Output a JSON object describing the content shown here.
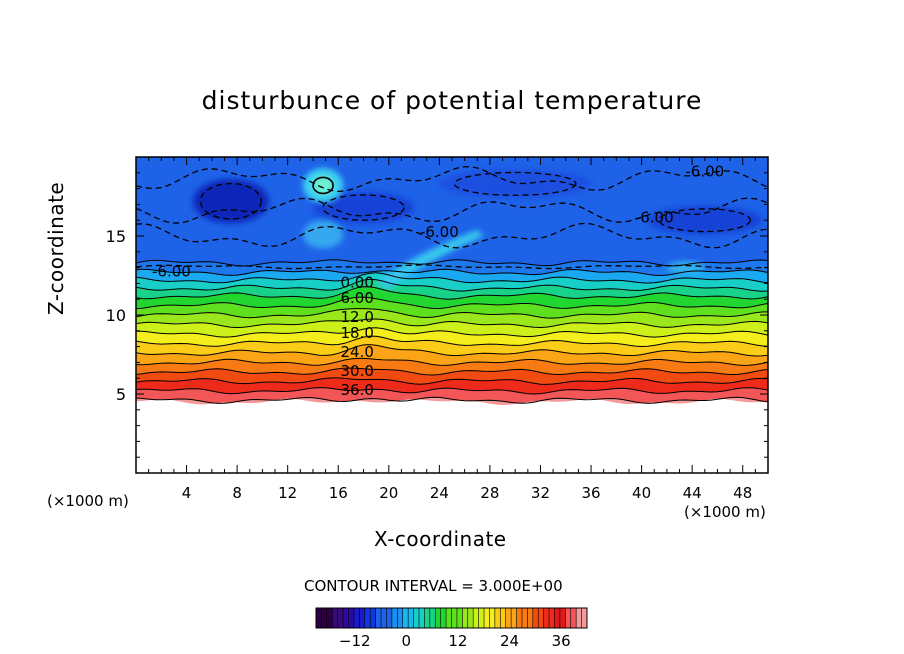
{
  "chart_data": {
    "type": "heatmap",
    "title": "disturbunce of potential temperature",
    "xlabel": "X-coordinate",
    "ylabel": "Z-coordinate",
    "x_unit": "(×1000 m)",
    "y_unit": "(×1000 m)",
    "xlim": [
      0,
      50
    ],
    "ylim": [
      0,
      20
    ],
    "x_ticks": [
      4,
      8,
      12,
      16,
      20,
      24,
      28,
      32,
      36,
      40,
      44,
      48
    ],
    "y_ticks": [
      5,
      10,
      15
    ],
    "contour_interval_text": "CONTOUR INTERVAL = 3.000E+00",
    "contour_labels": [
      {
        "text": "36.0",
        "x": 17.5,
        "z": 5.3
      },
      {
        "text": "30.0",
        "x": 17.5,
        "z": 6.5
      },
      {
        "text": "24.0",
        "x": 17.5,
        "z": 7.7
      },
      {
        "text": "18.0",
        "x": 17.5,
        "z": 8.9
      },
      {
        "text": "12.0",
        "x": 17.5,
        "z": 9.9
      },
      {
        "text": "6.00",
        "x": 17.5,
        "z": 11.1
      },
      {
        "text": "0.00",
        "x": 17.5,
        "z": 12.1
      },
      {
        "text": "-6.00",
        "x": 2.8,
        "z": 12.8
      },
      {
        "text": "-6.00",
        "x": 24.0,
        "z": 15.3
      },
      {
        "text": "-6.00",
        "x": 41.0,
        "z": 16.2
      },
      {
        "text": "-6.00",
        "x": 45.0,
        "z": 19.1
      }
    ],
    "levels": [
      {
        "z": 4.6,
        "value": 42,
        "color": "#f59a9a"
      },
      {
        "z": 5.2,
        "value": 39,
        "color": "#f25656"
      },
      {
        "z": 5.8,
        "value": 36,
        "color": "#ee2a1a"
      },
      {
        "z": 6.4,
        "value": 33,
        "color": "#f24b12"
      },
      {
        "z": 7.0,
        "value": 30,
        "color": "#f77a12"
      },
      {
        "z": 7.6,
        "value": 27,
        "color": "#fba416"
      },
      {
        "z": 8.2,
        "value": 24,
        "color": "#fbcc18"
      },
      {
        "z": 8.8,
        "value": 21,
        "color": "#f4ee1c"
      },
      {
        "z": 9.4,
        "value": 18,
        "color": "#cdf01a"
      },
      {
        "z": 10.0,
        "value": 15,
        "color": "#9ae81c"
      },
      {
        "z": 10.6,
        "value": 12,
        "color": "#5ee01e"
      },
      {
        "z": 11.2,
        "value": 9,
        "color": "#22d632"
      },
      {
        "z": 11.7,
        "value": 6,
        "color": "#19d28a"
      },
      {
        "z": 12.2,
        "value": 3,
        "color": "#18cfc8"
      },
      {
        "z": 12.7,
        "value": 0,
        "color": "#1aa8f0"
      },
      {
        "z": 13.3,
        "value": -3,
        "color": "#1c78ec"
      }
    ],
    "background_color": "#1e62e8",
    "cold_cores": [
      {
        "x": 7.5,
        "z": 17.2,
        "rx": 3.0,
        "rz": 1.4,
        "color": "#0f28b8"
      },
      {
        "x": 18.0,
        "z": 16.8,
        "rx": 4.0,
        "rz": 1.0,
        "color": "#1442d8"
      },
      {
        "x": 45.0,
        "z": 16.0,
        "rx": 4.5,
        "rz": 0.9,
        "color": "#1642d6"
      },
      {
        "x": 30.0,
        "z": 18.3,
        "rx": 6.0,
        "rz": 0.9,
        "color": "#1a4fe0"
      }
    ],
    "warm_patches": [
      {
        "x": 14.8,
        "z": 18.2,
        "rx": 1.6,
        "rz": 1.1,
        "color": "#3ad0f0"
      },
      {
        "x": 14.8,
        "z": 18.2,
        "rx": 0.8,
        "rz": 0.55,
        "color": "#6ff0d0"
      },
      {
        "x": 14.8,
        "z": 15.1,
        "rx": 1.6,
        "rz": 0.9,
        "color": "#34a8f0"
      },
      {
        "x": 43.5,
        "z": 13.0,
        "rx": 1.5,
        "rz": 0.4,
        "color": "#30b4f0"
      }
    ],
    "colorbar": {
      "range": [
        -21,
        42
      ],
      "ticks": [
        -12,
        0,
        12,
        24,
        36
      ],
      "colors": [
        "#2b0040",
        "#3a0a78",
        "#2a0aa0",
        "#1a1ac8",
        "#1038e0",
        "#1e62e8",
        "#1a90f0",
        "#1ab8f0",
        "#18cfc8",
        "#19d28a",
        "#22d632",
        "#5ee01e",
        "#9ae81c",
        "#cdf01a",
        "#f4ee1c",
        "#fbcc18",
        "#fba416",
        "#f77a12",
        "#f24b12",
        "#ee2a1a",
        "#e01818",
        "#f25656",
        "#f59a9a"
      ]
    }
  }
}
